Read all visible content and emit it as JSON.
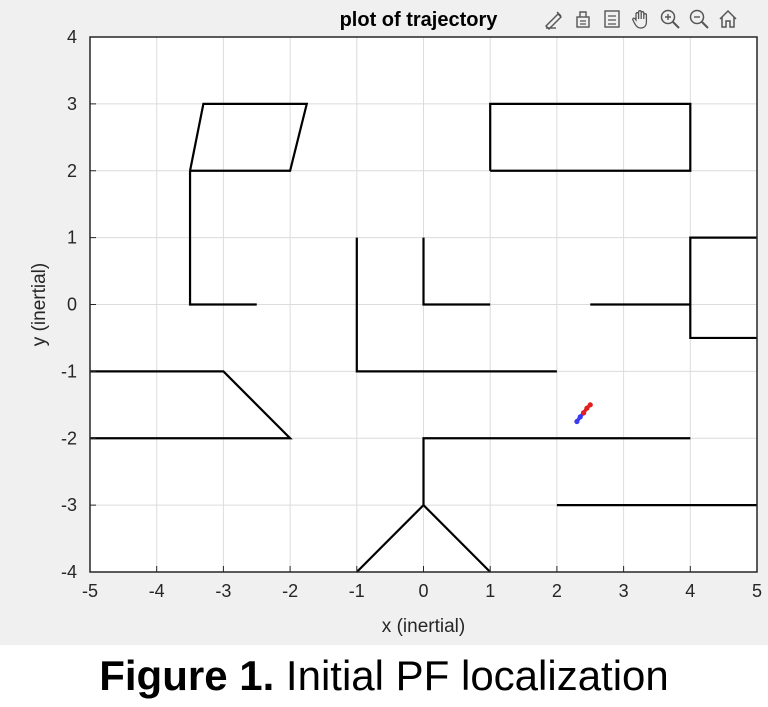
{
  "figure": {
    "caption_bold": "Figure 1.",
    "caption_text": " Initial PF localization"
  },
  "toolbar": {
    "tools": [
      {
        "name": "brush-icon",
        "icon": "brush"
      },
      {
        "name": "datatip-icon",
        "icon": "datatip"
      },
      {
        "name": "legend-icon",
        "icon": "legend"
      },
      {
        "name": "pan-hand-icon",
        "icon": "hand"
      },
      {
        "name": "zoom-in-icon",
        "icon": "zoom-in"
      },
      {
        "name": "zoom-out-icon",
        "icon": "zoom-out"
      },
      {
        "name": "home-icon",
        "icon": "home"
      }
    ]
  },
  "colors": {
    "walls": "#000000",
    "grid": "#dcdcdc",
    "particles_blue": "#3a3af0",
    "particles_red": "#e02020"
  },
  "chart_data": {
    "type": "line",
    "title": "plot of trajectory",
    "xlabel": "x (inertial)",
    "ylabel": "y (inertial)",
    "xlim": [
      -5,
      5
    ],
    "ylim": [
      -4,
      4
    ],
    "grid": true,
    "xticks": [
      -5,
      -4,
      -3,
      -2,
      -1,
      0,
      1,
      2,
      3,
      4,
      5
    ],
    "yticks": [
      -4,
      -3,
      -2,
      -1,
      0,
      1,
      2,
      3,
      4
    ],
    "walls": [
      {
        "x": [
          -3.5,
          -3.3,
          -1.75,
          -2.0,
          -3.5
        ],
        "y": [
          2,
          3,
          3,
          2,
          2
        ]
      },
      {
        "x": [
          -3.5,
          -3.5,
          -2.5
        ],
        "y": [
          2,
          0,
          0
        ]
      },
      {
        "x": [
          1,
          1,
          4,
          4,
          1
        ],
        "y": [
          2,
          3,
          3,
          2,
          2
        ]
      },
      {
        "x": [
          -1,
          -1,
          2
        ],
        "y": [
          1,
          -1,
          -1
        ]
      },
      {
        "x": [
          0,
          0,
          1
        ],
        "y": [
          1,
          0,
          0
        ]
      },
      {
        "x": [
          2.5,
          4
        ],
        "y": [
          0,
          0
        ]
      },
      {
        "x": [
          5,
          4,
          4,
          5
        ],
        "y": [
          1,
          1,
          -0.5,
          -0.5
        ]
      },
      {
        "x": [
          -5,
          -3,
          -2,
          -5
        ],
        "y": [
          -1,
          -1,
          -2,
          -2
        ]
      },
      {
        "x": [
          4,
          0,
          0
        ],
        "y": [
          -2,
          -2,
          -3
        ]
      },
      {
        "x": [
          -1,
          0,
          1
        ],
        "y": [
          -4,
          -3,
          -4
        ]
      },
      {
        "x": [
          2,
          5
        ],
        "y": [
          -3,
          -3
        ]
      }
    ],
    "particles": [
      {
        "color": "blue",
        "x": [
          2.3,
          2.35,
          2.4
        ],
        "y": [
          -1.75,
          -1.68,
          -1.62
        ]
      },
      {
        "color": "red",
        "x": [
          2.4,
          2.45,
          2.5
        ],
        "y": [
          -1.62,
          -1.55,
          -1.5
        ]
      }
    ]
  }
}
